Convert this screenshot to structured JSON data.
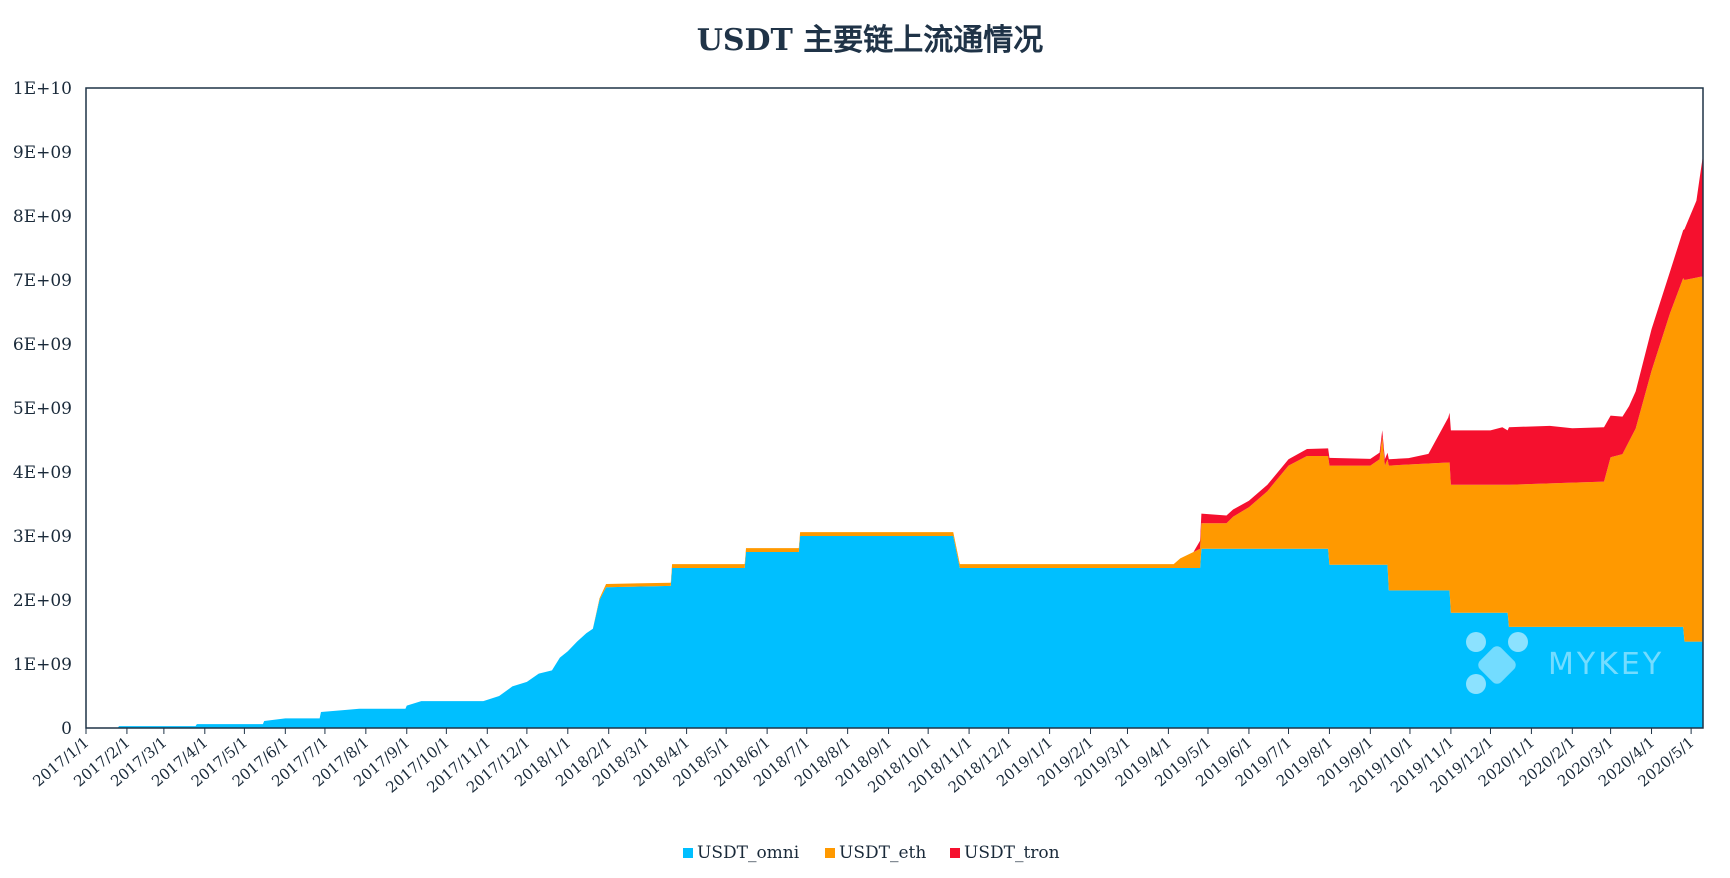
{
  "chart_data": {
    "type": "area",
    "stacked": true,
    "title": "USDT 主要链上流通情况",
    "xlabel": "",
    "ylabel": "",
    "ylim": [
      0,
      10000000000
    ],
    "y_ticks": [
      0,
      1000000000,
      2000000000,
      3000000000,
      4000000000,
      5000000000,
      6000000000,
      7000000000,
      8000000000,
      9000000000,
      10000000000
    ],
    "y_tick_labels": [
      "0",
      "1E+09",
      "2E+09",
      "3E+09",
      "4E+09",
      "5E+09",
      "6E+09",
      "7E+09",
      "8E+09",
      "9E+09",
      "1E+10"
    ],
    "x_range": [
      "2017/1/1",
      "2020/5/10"
    ],
    "x_tick_labels": [
      "2017/1/1",
      "2017/2/1",
      "2017/3/1",
      "2017/4/1",
      "2017/5/1",
      "2017/6/1",
      "2017/7/1",
      "2017/8/1",
      "2017/9/1",
      "2017/10/1",
      "2017/11/1",
      "2017/12/1",
      "2018/1/1",
      "2018/2/1",
      "2018/3/1",
      "2018/4/1",
      "2018/5/1",
      "2018/6/1",
      "2018/7/1",
      "2018/8/1",
      "2018/9/1",
      "2018/10/1",
      "2018/11/1",
      "2018/12/1",
      "2019/1/1",
      "2019/2/1",
      "2019/3/1",
      "2019/4/1",
      "2019/5/1",
      "2019/6/1",
      "2019/7/1",
      "2019/8/1",
      "2019/9/1",
      "2019/10/1",
      "2019/11/1",
      "2019/12/1",
      "2020/1/1",
      "2020/2/1",
      "2020/3/1",
      "2020/4/1",
      "2020/5/1"
    ],
    "grid": false,
    "legend_position": "bottom",
    "series": [
      {
        "name": "USDT_omni",
        "color": "#00bfff",
        "points": [
          [
            "2017/1/1",
            0
          ],
          [
            "2017/1/25",
            0
          ],
          [
            "2017/1/26",
            30000000
          ],
          [
            "2017/3/25",
            30000000
          ],
          [
            "2017/3/26",
            60000000
          ],
          [
            "2017/5/15",
            60000000
          ],
          [
            "2017/5/16",
            110000000
          ],
          [
            "2017/6/1",
            150000000
          ],
          [
            "2017/6/27",
            150000000
          ],
          [
            "2017/6/28",
            250000000
          ],
          [
            "2017/7/15",
            280000000
          ],
          [
            "2017/7/27",
            300000000
          ],
          [
            "2017/8/31",
            300000000
          ],
          [
            "2017/9/1",
            350000000
          ],
          [
            "2017/9/12",
            420000000
          ],
          [
            "2017/10/29",
            420000000
          ],
          [
            "2017/11/10",
            500000000
          ],
          [
            "2017/11/20",
            650000000
          ],
          [
            "2017/12/1",
            720000000
          ],
          [
            "2017/12/10",
            850000000
          ],
          [
            "2017/12/20",
            900000000
          ],
          [
            "2017/12/26",
            1100000000
          ],
          [
            "2018/1/1",
            1200000000
          ],
          [
            "2018/1/8",
            1350000000
          ],
          [
            "2018/1/15",
            1480000000
          ],
          [
            "2018/1/20",
            1550000000
          ],
          [
            "2018/1/25",
            2000000000
          ],
          [
            "2018/1/30",
            2200000000
          ],
          [
            "2018/3/20",
            2220000000
          ],
          [
            "2018/3/21",
            2500000000
          ],
          [
            "2018/5/15",
            2500000000
          ],
          [
            "2018/5/16",
            2750000000
          ],
          [
            "2018/6/25",
            2750000000
          ],
          [
            "2018/6/26",
            3000000000
          ],
          [
            "2018/10/20",
            3000000000
          ],
          [
            "2018/10/25",
            2500000000
          ],
          [
            "2019/4/25",
            2500000000
          ],
          [
            "2019/4/26",
            2800000000
          ],
          [
            "2019/7/31",
            2800000000
          ],
          [
            "2019/8/1",
            2550000000
          ],
          [
            "2019/9/14",
            2550000000
          ],
          [
            "2019/9/15",
            2150000000
          ],
          [
            "2019/10/31",
            2150000000
          ],
          [
            "2019/11/1",
            1800000000
          ],
          [
            "2019/12/14",
            1800000000
          ],
          [
            "2019/12/15",
            1580000000
          ],
          [
            "2020/4/25",
            1580000000
          ],
          [
            "2020/4/26",
            1350000000
          ],
          [
            "2020/5/10",
            1350000000
          ]
        ]
      },
      {
        "name": "USDT_eth",
        "color": "#ff9900",
        "points": [
          [
            "2017/1/1",
            0
          ],
          [
            "2018/1/20",
            0
          ],
          [
            "2018/1/30",
            50000000
          ],
          [
            "2018/3/20",
            50000000
          ],
          [
            "2018/3/21",
            60000000
          ],
          [
            "2018/10/20",
            60000000
          ],
          [
            "2018/10/25",
            60000000
          ],
          [
            "2019/4/5",
            60000000
          ],
          [
            "2019/4/10",
            150000000
          ],
          [
            "2019/4/20",
            250000000
          ],
          [
            "2019/4/25",
            300000000
          ],
          [
            "2019/4/26",
            400000000
          ],
          [
            "2019/5/15",
            400000000
          ],
          [
            "2019/5/20",
            500000000
          ],
          [
            "2019/6/1",
            650000000
          ],
          [
            "2019/6/15",
            900000000
          ],
          [
            "2019/7/1",
            1300000000
          ],
          [
            "2019/7/15",
            1450000000
          ],
          [
            "2019/7/31",
            1450000000
          ],
          [
            "2019/8/1",
            1550000000
          ],
          [
            "2019/9/1",
            1550000000
          ],
          [
            "2019/9/8",
            1650000000
          ],
          [
            "2019/9/10",
            2000000000
          ],
          [
            "2019/9/12",
            1550000000
          ],
          [
            "2019/9/14",
            1650000000
          ],
          [
            "2019/9/15",
            1950000000
          ],
          [
            "2019/10/31",
            2000000000
          ],
          [
            "2019/11/1",
            2000000000
          ],
          [
            "2019/12/14",
            2000000000
          ],
          [
            "2019/12/15",
            2220000000
          ],
          [
            "2020/2/25",
            2270000000
          ],
          [
            "2020/3/1",
            2650000000
          ],
          [
            "2020/3/10",
            2700000000
          ],
          [
            "2020/3/20",
            3100000000
          ],
          [
            "2020/4/1",
            4000000000
          ],
          [
            "2020/4/15",
            4900000000
          ],
          [
            "2020/4/25",
            5450000000
          ],
          [
            "2020/4/26",
            5650000000
          ],
          [
            "2020/5/8",
            5700000000
          ],
          [
            "2020/5/10",
            5700000000
          ]
        ]
      },
      {
        "name": "USDT_tron",
        "color": "#f5102e",
        "points": [
          [
            "2017/1/1",
            0
          ],
          [
            "2019/4/20",
            0
          ],
          [
            "2019/4/26",
            150000000
          ],
          [
            "2019/5/15",
            120000000
          ],
          [
            "2019/6/1",
            100000000
          ],
          [
            "2019/7/1",
            100000000
          ],
          [
            "2019/8/1",
            120000000
          ],
          [
            "2019/9/14",
            100000000
          ],
          [
            "2019/9/30",
            100000000
          ],
          [
            "2019/10/15",
            150000000
          ],
          [
            "2019/10/30",
            700000000
          ],
          [
            "2019/11/1",
            850000000
          ],
          [
            "2019/12/1",
            850000000
          ],
          [
            "2019/12/10",
            900000000
          ],
          [
            "2019/12/14",
            850000000
          ],
          [
            "2019/12/15",
            900000000
          ],
          [
            "2020/1/15",
            900000000
          ],
          [
            "2020/2/1",
            850000000
          ],
          [
            "2020/2/25",
            850000000
          ],
          [
            "2020/3/1",
            650000000
          ],
          [
            "2020/3/15",
            550000000
          ],
          [
            "2020/4/1",
            650000000
          ],
          [
            "2020/4/15",
            650000000
          ],
          [
            "2020/4/25",
            750000000
          ],
          [
            "2020/5/5",
            1200000000
          ],
          [
            "2020/5/10",
            1900000000
          ]
        ]
      }
    ],
    "watermark": "MYKEY"
  }
}
